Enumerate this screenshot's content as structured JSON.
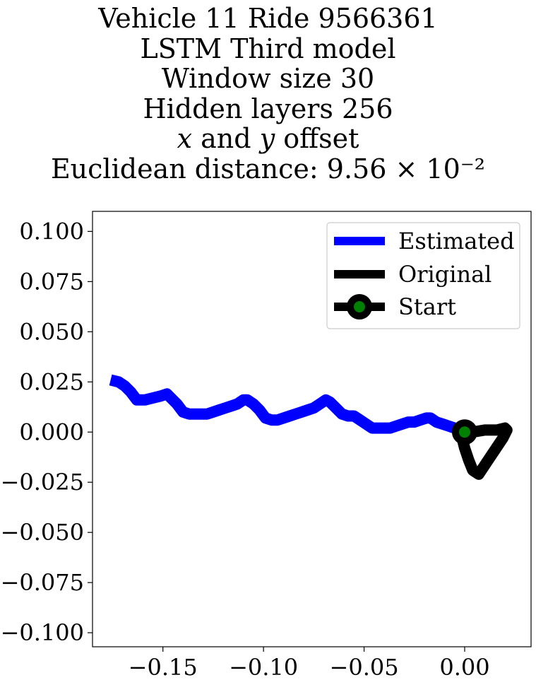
{
  "title_lines": [
    "Vehicle 11 Ride 9566361",
    "LSTM Third model",
    "Window size 30",
    "Hidden layers 256",
    "x and y offset",
    "Euclidean distance: 9.56 × 10⁻²"
  ],
  "chart_data": {
    "type": "line",
    "title": "Vehicle 11 Ride 9566361 / LSTM Third model / Window size 30 / Hidden layers 256 / x and y offset / Euclidean distance: 9.56 × 10⁻²",
    "xlabel": "",
    "ylabel": "",
    "xlim": [
      -0.185,
      0.033
    ],
    "ylim": [
      -0.107,
      0.11
    ],
    "xticks": [
      -0.15,
      -0.1,
      -0.05,
      0.0
    ],
    "xtick_labels": [
      "−0.15",
      "−0.10",
      "−0.05",
      "0.00"
    ],
    "yticks": [
      0.1,
      0.075,
      0.05,
      0.025,
      0.0,
      -0.025,
      -0.05,
      -0.075,
      -0.1
    ],
    "ytick_labels": [
      "0.100",
      "0.075",
      "0.050",
      "0.025",
      "0.000",
      "−0.025",
      "−0.050",
      "−0.075",
      "−0.100"
    ],
    "grid": false,
    "legend_position": "top-right",
    "series": [
      {
        "name": "Estimated",
        "color": "#0000ff",
        "x": [
          -0.176,
          -0.172,
          -0.169,
          -0.166,
          -0.163,
          -0.159,
          -0.155,
          -0.151,
          -0.148,
          -0.146,
          -0.143,
          -0.14,
          -0.137,
          -0.134,
          -0.131,
          -0.128,
          -0.125,
          -0.122,
          -0.119,
          -0.116,
          -0.113,
          -0.11,
          -0.108,
          -0.105,
          -0.102,
          -0.099,
          -0.096,
          -0.093,
          -0.09,
          -0.087,
          -0.084,
          -0.081,
          -0.078,
          -0.075,
          -0.072,
          -0.069,
          -0.067,
          -0.064,
          -0.061,
          -0.058,
          -0.055,
          -0.052,
          -0.049,
          -0.046,
          -0.043,
          -0.04,
          -0.037,
          -0.034,
          -0.031,
          -0.028,
          -0.025,
          -0.022,
          -0.019,
          -0.017,
          -0.014,
          -0.011,
          -0.008,
          -0.005,
          -0.002,
          0.0
        ],
        "y": [
          0.026,
          0.025,
          0.023,
          0.02,
          0.016,
          0.016,
          0.017,
          0.018,
          0.019,
          0.017,
          0.014,
          0.01,
          0.009,
          0.009,
          0.009,
          0.009,
          0.01,
          0.011,
          0.012,
          0.013,
          0.014,
          0.016,
          0.016,
          0.014,
          0.011,
          0.007,
          0.006,
          0.006,
          0.007,
          0.008,
          0.009,
          0.01,
          0.011,
          0.012,
          0.014,
          0.016,
          0.015,
          0.012,
          0.009,
          0.008,
          0.008,
          0.006,
          0.004,
          0.002,
          0.002,
          0.002,
          0.002,
          0.003,
          0.004,
          0.005,
          0.005,
          0.006,
          0.007,
          0.007,
          0.005,
          0.004,
          0.003,
          0.002,
          0.001,
          0.0
        ]
      },
      {
        "name": "Original",
        "color": "#000000",
        "x": [
          0.0,
          0.004,
          0.01,
          0.016,
          0.02,
          0.021,
          0.019,
          0.015,
          0.011,
          0.007,
          0.004,
          0.002,
          0.0,
          -0.001,
          0.0
        ],
        "y": [
          0.0,
          0.0,
          0.001,
          0.001,
          0.002,
          0.001,
          -0.003,
          -0.009,
          -0.015,
          -0.021,
          -0.019,
          -0.014,
          -0.008,
          -0.004,
          0.0
        ]
      }
    ],
    "start": {
      "name": "Start",
      "x": 0.0,
      "y": 0.0,
      "marker_edge_color": "#000000",
      "marker_face_color": "#008000"
    }
  }
}
